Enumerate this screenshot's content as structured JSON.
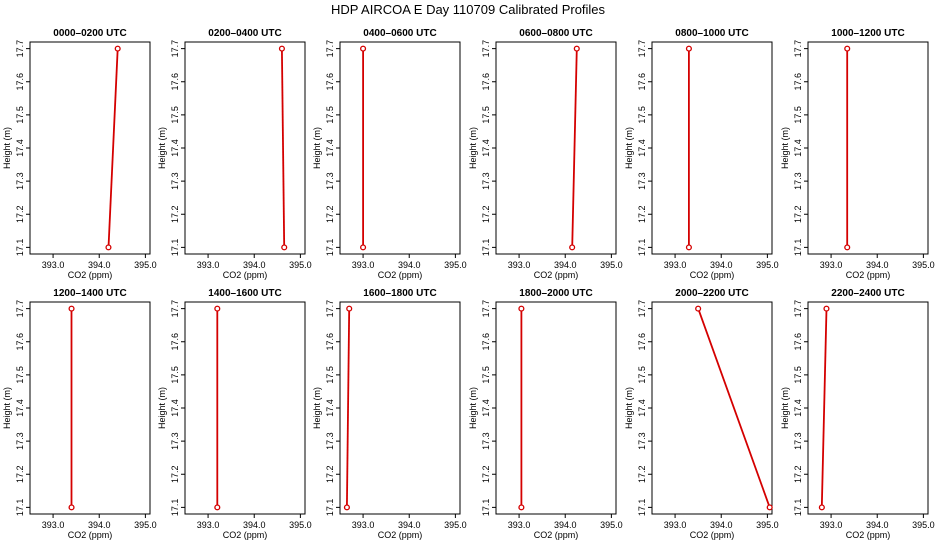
{
  "title": "HDP AIRCOA E  Day 110709  Calibrated Profiles",
  "colors": {
    "line": "#d40000",
    "axis": "#000000"
  },
  "chart_data": [
    {
      "type": "line",
      "title": "0000–0200 UTC",
      "xlabel": "CO2 (ppm)",
      "ylabel": "Height (m)",
      "xlim": [
        392.5,
        395.1
      ],
      "ylim": [
        17.08,
        17.72
      ],
      "xticks": [
        "393.0",
        "394.0",
        "395.0"
      ],
      "yticks": [
        "17.1",
        "17.2",
        "17.3",
        "17.4",
        "17.5",
        "17.6",
        "17.7"
      ],
      "x": [
        394.2,
        394.4
      ],
      "y": [
        17.1,
        17.7
      ]
    },
    {
      "type": "line",
      "title": "0200–0400 UTC",
      "xlabel": "CO2 (ppm)",
      "ylabel": "Height (m)",
      "xlim": [
        392.5,
        395.1
      ],
      "ylim": [
        17.08,
        17.72
      ],
      "xticks": [
        "393.0",
        "394.0",
        "395.0"
      ],
      "yticks": [
        "17.1",
        "17.2",
        "17.3",
        "17.4",
        "17.5",
        "17.6",
        "17.7"
      ],
      "x": [
        394.65,
        394.6
      ],
      "y": [
        17.1,
        17.7
      ]
    },
    {
      "type": "line",
      "title": "0400–0600 UTC",
      "xlabel": "CO2 (ppm)",
      "ylabel": "Height (m)",
      "xlim": [
        392.5,
        395.1
      ],
      "ylim": [
        17.08,
        17.72
      ],
      "xticks": [
        "393.0",
        "394.0",
        "395.0"
      ],
      "yticks": [
        "17.1",
        "17.2",
        "17.3",
        "17.4",
        "17.5",
        "17.6",
        "17.7"
      ],
      "x": [
        393.0,
        393.0
      ],
      "y": [
        17.1,
        17.7
      ]
    },
    {
      "type": "line",
      "title": "0600–0800 UTC",
      "xlabel": "CO2 (ppm)",
      "ylabel": "Height (m)",
      "xlim": [
        392.5,
        395.1
      ],
      "ylim": [
        17.08,
        17.72
      ],
      "xticks": [
        "393.0",
        "394.0",
        "395.0"
      ],
      "yticks": [
        "17.1",
        "17.2",
        "17.3",
        "17.4",
        "17.5",
        "17.6",
        "17.7"
      ],
      "x": [
        394.15,
        394.25
      ],
      "y": [
        17.1,
        17.7
      ]
    },
    {
      "type": "line",
      "title": "0800–1000 UTC",
      "xlabel": "CO2 (ppm)",
      "ylabel": "Height (m)",
      "xlim": [
        392.5,
        395.1
      ],
      "ylim": [
        17.08,
        17.72
      ],
      "xticks": [
        "393.0",
        "394.0",
        "395.0"
      ],
      "yticks": [
        "17.1",
        "17.2",
        "17.3",
        "17.4",
        "17.5",
        "17.6",
        "17.7"
      ],
      "x": [
        393.3,
        393.3
      ],
      "y": [
        17.1,
        17.7
      ]
    },
    {
      "type": "line",
      "title": "1000–1200 UTC",
      "xlabel": "CO2 (ppm)",
      "ylabel": "Height (m)",
      "xlim": [
        392.5,
        395.1
      ],
      "ylim": [
        17.08,
        17.72
      ],
      "xticks": [
        "393.0",
        "394.0",
        "395.0"
      ],
      "yticks": [
        "17.1",
        "17.2",
        "17.3",
        "17.4",
        "17.5",
        "17.6",
        "17.7"
      ],
      "x": [
        393.35,
        393.35
      ],
      "y": [
        17.1,
        17.7
      ]
    },
    {
      "type": "line",
      "title": "1200–1400 UTC",
      "xlabel": "CO2 (ppm)",
      "ylabel": "Height (m)",
      "xlim": [
        392.5,
        395.1
      ],
      "ylim": [
        17.08,
        17.72
      ],
      "xticks": [
        "393.0",
        "394.0",
        "395.0"
      ],
      "yticks": [
        "17.1",
        "17.2",
        "17.3",
        "17.4",
        "17.5",
        "17.6",
        "17.7"
      ],
      "x": [
        393.4,
        393.4
      ],
      "y": [
        17.1,
        17.7
      ]
    },
    {
      "type": "line",
      "title": "1400–1600 UTC",
      "xlabel": "CO2 (ppm)",
      "ylabel": "Height (m)",
      "xlim": [
        392.5,
        395.1
      ],
      "ylim": [
        17.08,
        17.72
      ],
      "xticks": [
        "393.0",
        "394.0",
        "395.0"
      ],
      "yticks": [
        "17.1",
        "17.2",
        "17.3",
        "17.4",
        "17.5",
        "17.6",
        "17.7"
      ],
      "x": [
        393.2,
        393.2
      ],
      "y": [
        17.1,
        17.7
      ]
    },
    {
      "type": "line",
      "title": "1600–1800 UTC",
      "xlabel": "CO2 (ppm)",
      "ylabel": "Height (m)",
      "xlim": [
        392.5,
        395.1
      ],
      "ylim": [
        17.08,
        17.72
      ],
      "xticks": [
        "393.0",
        "394.0",
        "395.0"
      ],
      "yticks": [
        "17.1",
        "17.2",
        "17.3",
        "17.4",
        "17.5",
        "17.6",
        "17.7"
      ],
      "x": [
        392.65,
        392.7
      ],
      "y": [
        17.1,
        17.7
      ]
    },
    {
      "type": "line",
      "title": "1800–2000 UTC",
      "xlabel": "CO2 (ppm)",
      "ylabel": "Height (m)",
      "xlim": [
        392.5,
        395.1
      ],
      "ylim": [
        17.08,
        17.72
      ],
      "xticks": [
        "393.0",
        "394.0",
        "395.0"
      ],
      "yticks": [
        "17.1",
        "17.2",
        "17.3",
        "17.4",
        "17.5",
        "17.6",
        "17.7"
      ],
      "x": [
        393.05,
        393.05
      ],
      "y": [
        17.1,
        17.7
      ]
    },
    {
      "type": "line",
      "title": "2000–2200 UTC",
      "xlabel": "CO2 (ppm)",
      "ylabel": "Height (m)",
      "xlim": [
        392.5,
        395.1
      ],
      "ylim": [
        17.08,
        17.72
      ],
      "xticks": [
        "393.0",
        "394.0",
        "395.0"
      ],
      "yticks": [
        "17.1",
        "17.2",
        "17.3",
        "17.4",
        "17.5",
        "17.6",
        "17.7"
      ],
      "x": [
        395.05,
        393.5
      ],
      "y": [
        17.1,
        17.7
      ]
    },
    {
      "type": "line",
      "title": "2200–2400 UTC",
      "xlabel": "CO2 (ppm)",
      "ylabel": "Height (m)",
      "xlim": [
        392.5,
        395.1
      ],
      "ylim": [
        17.08,
        17.72
      ],
      "xticks": [
        "393.0",
        "394.0",
        "395.0"
      ],
      "yticks": [
        "17.1",
        "17.2",
        "17.3",
        "17.4",
        "17.5",
        "17.6",
        "17.7"
      ],
      "x": [
        392.8,
        392.9
      ],
      "y": [
        17.1,
        17.7
      ]
    }
  ]
}
